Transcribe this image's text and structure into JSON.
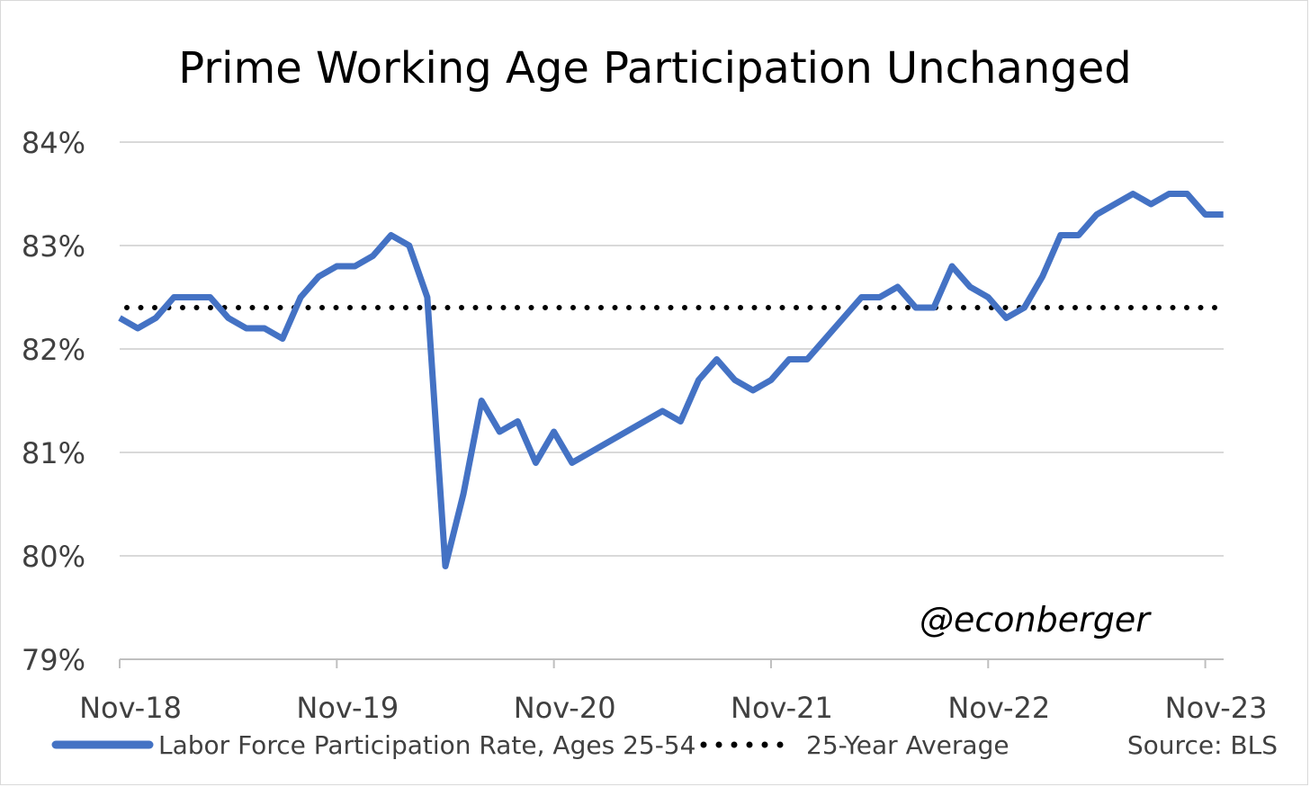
{
  "chart_data": {
    "type": "line",
    "title": "Prime Working Age Participation Unchanged",
    "xlabel": "",
    "ylabel": "",
    "ylim": [
      79,
      84
    ],
    "y_ticks": [
      "84%",
      "83%",
      "82%",
      "81%",
      "80%",
      "79%"
    ],
    "y_tick_values": [
      84,
      83,
      82,
      81,
      80,
      79
    ],
    "x_tick_labels": [
      "Nov-18",
      "Nov-19",
      "Nov-20",
      "Nov-21",
      "Nov-22",
      "Nov-23"
    ],
    "x_start": "Nov-18",
    "grid": true,
    "legend_position": "bottom",
    "series": [
      {
        "name": "Labor Force Participation Rate, Ages 25-54",
        "color": "#4472c4",
        "style": "solid",
        "values": [
          82.3,
          82.2,
          82.3,
          82.5,
          82.5,
          82.5,
          82.3,
          82.2,
          82.2,
          82.1,
          82.5,
          82.7,
          82.8,
          82.8,
          82.9,
          83.1,
          83.0,
          82.5,
          79.9,
          80.6,
          81.5,
          81.2,
          81.3,
          80.9,
          81.2,
          80.9,
          81.0,
          81.1,
          81.2,
          81.3,
          81.4,
          81.3,
          81.7,
          81.9,
          81.7,
          81.6,
          81.7,
          81.9,
          81.9,
          82.1,
          82.3,
          82.5,
          82.5,
          82.6,
          82.4,
          82.4,
          82.8,
          82.6,
          82.5,
          82.3,
          82.4,
          82.7,
          83.1,
          83.1,
          83.3,
          83.4,
          83.5,
          83.4,
          83.5,
          83.5,
          83.3,
          83.3
        ]
      },
      {
        "name": "25-Year Average",
        "color": "#000000",
        "style": "dotted",
        "values": [
          82.4,
          82.4
        ]
      }
    ]
  },
  "annotations": {
    "watermark": "@econberger",
    "source": "Source: BLS"
  }
}
